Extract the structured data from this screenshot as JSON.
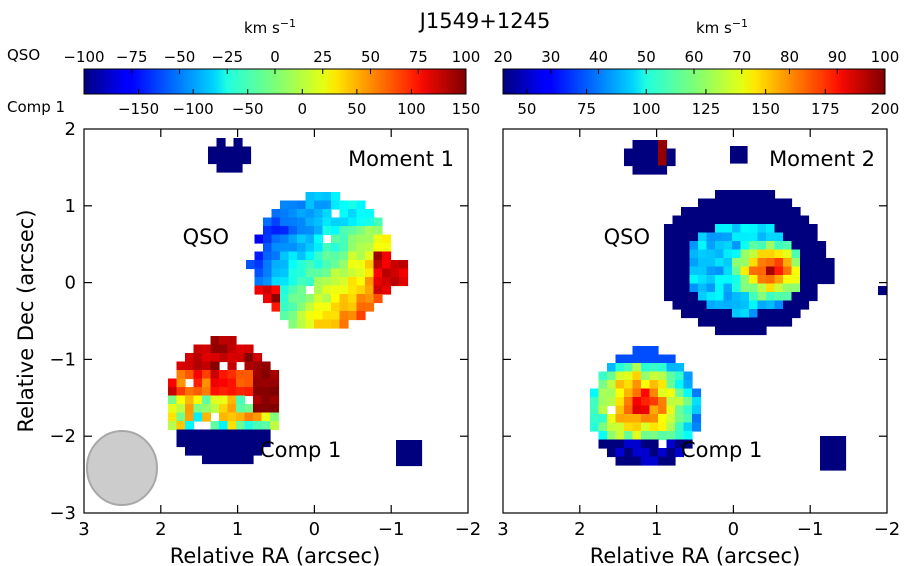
{
  "figure": {
    "title": "J1549+1245"
  },
  "colorbars": [
    {
      "unit_label": "km s",
      "unit_exponent": "−1",
      "row_labels": [
        "QSO",
        "Comp 1"
      ],
      "top_range": [
        -100,
        100
      ],
      "top_ticks": [
        "−100",
        "−75",
        "−50",
        "−25",
        "0",
        "25",
        "50",
        "75",
        "100"
      ],
      "bottom_range": [
        -200,
        150
      ],
      "bottom_ticks": [
        "−150",
        "−100",
        "−50",
        "0",
        "50",
        "100",
        "150"
      ],
      "colormap": "jet"
    },
    {
      "unit_label": "km s",
      "unit_exponent": "−1",
      "top_range": [
        20,
        100
      ],
      "top_ticks": [
        "20",
        "30",
        "40",
        "50",
        "60",
        "70",
        "80",
        "90",
        "100"
      ],
      "bottom_range": [
        40,
        200
      ],
      "bottom_ticks": [
        "50",
        "75",
        "100",
        "125",
        "150",
        "175",
        "200"
      ],
      "colormap": "jet"
    }
  ],
  "panels": [
    {
      "title": "Moment 1",
      "labels": [
        "QSO",
        "Comp 1"
      ],
      "xlabel": "Relative RA (arcsec)",
      "ylabel": "Relative Dec (arcsec)",
      "xticks": [
        "3",
        "2",
        "1",
        "0",
        "−1",
        "−2"
      ],
      "yticks": [
        "2",
        "1",
        "0",
        "−1",
        "−2",
        "−3"
      ]
    },
    {
      "title": "Moment 2",
      "labels": [
        "QSO",
        "Comp 1"
      ],
      "xlabel": "Relative RA (arcsec)",
      "xticks": [
        "3",
        "2",
        "1",
        "0",
        "−1",
        "−2"
      ]
    }
  ],
  "chart_data": [
    {
      "type": "heatmap",
      "title": "Moment 1",
      "xlabel": "Relative RA (arcsec)",
      "ylabel": "Relative Dec (arcsec)",
      "xlim": [
        3,
        -2
      ],
      "ylim": [
        -3,
        2
      ],
      "colorbar_label": "km s−1",
      "sources": [
        {
          "name": "QSO",
          "ra_center": 0.0,
          "dec_center": 0.3,
          "value_range_kms": [
            -100,
            100
          ]
        },
        {
          "name": "Comp 1",
          "ra_center": 1.2,
          "dec_center": -1.5,
          "value_range_kms": [
            -200,
            150
          ]
        }
      ],
      "beam": {
        "ra_center": 2.5,
        "dec_center": -2.5,
        "major_arcsec": 0.85,
        "minor_arcsec": 0.95
      }
    },
    {
      "type": "heatmap",
      "title": "Moment 2",
      "xlabel": "Relative RA (arcsec)",
      "xlim": [
        3,
        -2
      ],
      "ylim": [
        -3,
        2
      ],
      "colorbar_label": "km s−1",
      "sources": [
        {
          "name": "QSO",
          "ra_center": -0.2,
          "dec_center": 0.2,
          "value_range_kms": [
            20,
            100
          ]
        },
        {
          "name": "Comp 1",
          "ra_center": 1.1,
          "dec_center": -1.6,
          "value_range_kms": [
            40,
            200
          ]
        }
      ]
    }
  ]
}
